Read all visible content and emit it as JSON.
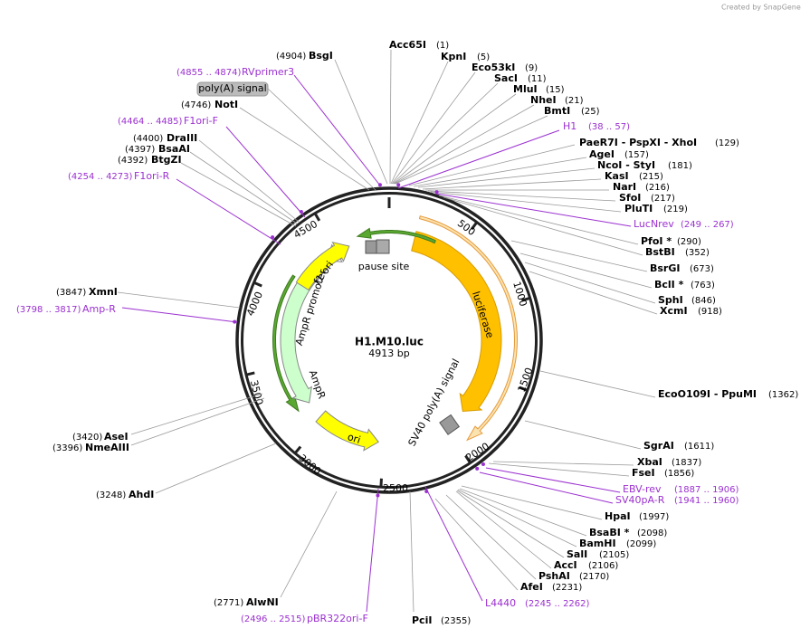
{
  "header": {
    "credit": "Created by SnapGene"
  },
  "plasmid": {
    "name": "H1.M10.luc",
    "size": "4913 bp"
  },
  "ticks": [
    500,
    1000,
    1500,
    2000,
    2500,
    3000,
    3500,
    4000,
    4500
  ],
  "features": [
    "pause site",
    "luciferase",
    "SV40 poly(A) signal",
    "ori",
    "AmpR",
    "AmpR promoter",
    "f1 ori",
    "poly(A) signal"
  ],
  "enzymes": [
    {
      "name": "Acc65I",
      "position": "(1)"
    },
    {
      "name": "KpnI",
      "position": "(5)"
    },
    {
      "name": "Eco53kI",
      "position": "(9)"
    },
    {
      "name": "SacI",
      "position": "(11)"
    },
    {
      "name": "MluI",
      "position": "(15)"
    },
    {
      "name": "NheI",
      "position": "(21)"
    },
    {
      "name": "BmtI",
      "position": "(25)"
    },
    {
      "name": "PaeR7I - PspXI - XhoI",
      "position": "(129)"
    },
    {
      "name": "AgeI",
      "position": "(157)"
    },
    {
      "name": "NcoI - StyI",
      "position": "(181)"
    },
    {
      "name": "KasI",
      "position": "(215)"
    },
    {
      "name": "NarI",
      "position": "(216)"
    },
    {
      "name": "SfoI",
      "position": "(217)"
    },
    {
      "name": "PluTI",
      "position": "(219)"
    },
    {
      "name": "PfoI *",
      "position": "(290)"
    },
    {
      "name": "BstBI",
      "position": "(352)"
    },
    {
      "name": "BsrGI",
      "position": "(673)"
    },
    {
      "name": "BclI *",
      "position": "(763)"
    },
    {
      "name": "SphI",
      "position": "(846)"
    },
    {
      "name": "XcmI",
      "position": "(918)"
    },
    {
      "name": "EcoO109I - PpuMI",
      "position": "(1362)"
    },
    {
      "name": "SgrAI",
      "position": "(1611)"
    },
    {
      "name": "XbaI",
      "position": "(1837)"
    },
    {
      "name": "FseI",
      "position": "(1856)"
    },
    {
      "name": "HpaI",
      "position": "(1997)"
    },
    {
      "name": "BsaBI *",
      "position": "(2098)"
    },
    {
      "name": "BamHI",
      "position": "(2099)"
    },
    {
      "name": "SalI",
      "position": "(2105)"
    },
    {
      "name": "AccI",
      "position": "(2106)"
    },
    {
      "name": "PshAI",
      "position": "(2170)"
    },
    {
      "name": "AfeI",
      "position": "(2231)"
    },
    {
      "name": "PciI",
      "position": "(2355)"
    },
    {
      "name": "AlwNI",
      "position": "(2771)"
    },
    {
      "name": "AhdI",
      "position": "(3248)"
    },
    {
      "name": "AseI",
      "position": "(3420)"
    },
    {
      "name": "NmeAIII",
      "position": "(3396)"
    },
    {
      "name": "XmnI",
      "position": "(3847)"
    },
    {
      "name": "BtgZI",
      "position": "(4392)"
    },
    {
      "name": "BsaAI",
      "position": "(4397)"
    },
    {
      "name": "DraIII",
      "position": "(4400)"
    },
    {
      "name": "NotI",
      "position": "(4746)"
    },
    {
      "name": "BsgI",
      "position": "(4904)"
    }
  ],
  "primers": [
    {
      "name": "H1",
      "range": "(38 .. 57)"
    },
    {
      "name": "LucNrev",
      "range": "(249 .. 267)"
    },
    {
      "name": "EBV-rev",
      "range": "(1887 .. 1906)"
    },
    {
      "name": "SV40pA-R",
      "range": "(1941 .. 1960)"
    },
    {
      "name": "L4440",
      "range": "(2245 .. 2262)"
    },
    {
      "name": "pBR322ori-F",
      "range": "(2496 .. 2515)"
    },
    {
      "name": "Amp-R",
      "range": "(3798 .. 3817)"
    },
    {
      "name": "F1ori-R",
      "range": "(4254 .. 4273)"
    },
    {
      "name": "F1ori-F",
      "range": "(4464 .. 4485)"
    },
    {
      "name": "RVprimer3",
      "range": "(4855 .. 4874)"
    }
  ]
}
